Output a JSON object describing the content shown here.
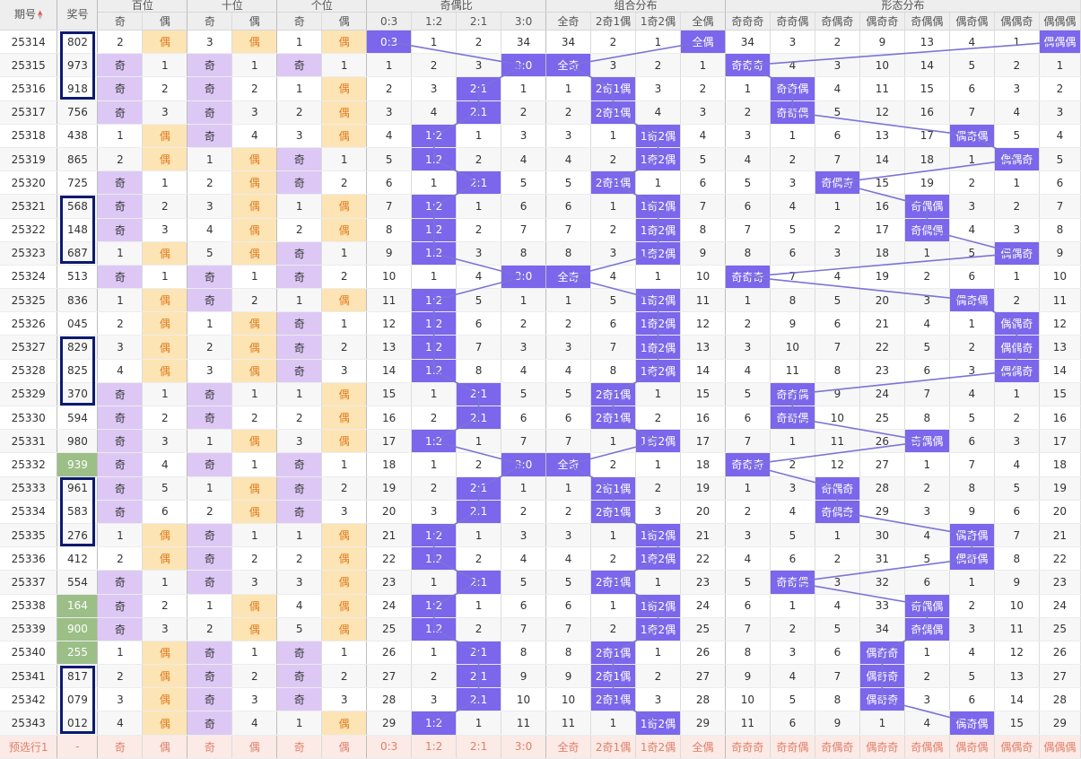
{
  "headers": {
    "qihao": "期号",
    "jianghao": "奖号",
    "bai": "百位",
    "shi": "十位",
    "ge": "个位",
    "jiou_bi": "奇偶比",
    "zuhe": "组合分布",
    "xingtai": "形态分布",
    "pos_sub": [
      "奇",
      "偶"
    ],
    "jiou_sub": [
      "0:3",
      "1:2",
      "2:1",
      "3:0"
    ],
    "zuhe_sub": [
      "全奇",
      "2奇1偶",
      "1奇2偶",
      "全偶"
    ],
    "xingtai_sub": [
      "奇奇奇",
      "奇奇偶",
      "奇偶奇",
      "偶奇奇",
      "奇偶偶",
      "偶奇偶",
      "偶偶奇",
      "偶偶偶"
    ]
  },
  "sort_icon": "sort-up-active-icon",
  "colors": {
    "highlight": "#7b66ec",
    "odd": "#ddc8f5",
    "even": "#fde4b5",
    "green": "#9cbf87",
    "box": "#0c1a6e"
  },
  "rows": [
    {
      "qihao": "25314",
      "num": "802",
      "c": [
        "2",
        "偶",
        "3",
        "偶",
        "1",
        "偶",
        "0:3",
        "1",
        "2",
        "34",
        "34",
        "2",
        "1",
        "全偶",
        "34",
        "3",
        "2",
        "9",
        "13",
        "4",
        "1",
        "偶偶偶"
      ]
    },
    {
      "qihao": "25315",
      "num": "973",
      "c": [
        "奇",
        "1",
        "奇",
        "1",
        "奇",
        "1",
        "1",
        "2",
        "3",
        "3:0",
        "全奇",
        "3",
        "2",
        "1",
        "奇奇奇",
        "4",
        "3",
        "10",
        "14",
        "5",
        "2",
        "1"
      ]
    },
    {
      "qihao": "25316",
      "num": "918",
      "c": [
        "奇",
        "2",
        "奇",
        "2",
        "1",
        "偶",
        "2",
        "3",
        "2:1",
        "1",
        "1",
        "2奇1偶",
        "3",
        "2",
        "1",
        "奇奇偶",
        "4",
        "11",
        "15",
        "6",
        "3",
        "2"
      ]
    },
    {
      "qihao": "25317",
      "num": "756",
      "c": [
        "奇",
        "3",
        "奇",
        "3",
        "2",
        "偶",
        "3",
        "4",
        "2:1",
        "2",
        "2",
        "2奇1偶",
        "4",
        "3",
        "2",
        "奇奇偶",
        "5",
        "12",
        "16",
        "7",
        "4",
        "3"
      ]
    },
    {
      "qihao": "25318",
      "num": "438",
      "c": [
        "1",
        "偶",
        "奇",
        "4",
        "3",
        "偶",
        "4",
        "1:2",
        "1",
        "3",
        "3",
        "1",
        "1奇2偶",
        "4",
        "3",
        "1",
        "6",
        "13",
        "17",
        "偶奇偶",
        "5",
        "4"
      ]
    },
    {
      "qihao": "25319",
      "num": "865",
      "c": [
        "2",
        "偶",
        "1",
        "偶",
        "奇",
        "1",
        "5",
        "1:2",
        "2",
        "4",
        "4",
        "2",
        "1奇2偶",
        "5",
        "4",
        "2",
        "7",
        "14",
        "18",
        "1",
        "偶偶奇",
        "5"
      ]
    },
    {
      "qihao": "25320",
      "num": "725",
      "c": [
        "奇",
        "1",
        "2",
        "偶",
        "奇",
        "2",
        "6",
        "1",
        "2:1",
        "5",
        "5",
        "2奇1偶",
        "1",
        "6",
        "5",
        "3",
        "奇偶奇",
        "15",
        "19",
        "2",
        "1",
        "6"
      ]
    },
    {
      "qihao": "25321",
      "num": "568",
      "c": [
        "奇",
        "2",
        "3",
        "偶",
        "1",
        "偶",
        "7",
        "1:2",
        "1",
        "6",
        "6",
        "1",
        "1奇2偶",
        "7",
        "6",
        "4",
        "1",
        "16",
        "奇偶偶",
        "3",
        "2",
        "7"
      ]
    },
    {
      "qihao": "25322",
      "num": "148",
      "c": [
        "奇",
        "3",
        "4",
        "偶",
        "2",
        "偶",
        "8",
        "1:2",
        "2",
        "7",
        "7",
        "2",
        "1奇2偶",
        "8",
        "7",
        "5",
        "2",
        "17",
        "奇偶偶",
        "4",
        "3",
        "8"
      ]
    },
    {
      "qihao": "25323",
      "num": "687",
      "c": [
        "1",
        "偶",
        "5",
        "偶",
        "奇",
        "1",
        "9",
        "1:2",
        "3",
        "8",
        "8",
        "3",
        "1奇2偶",
        "9",
        "8",
        "6",
        "3",
        "18",
        "1",
        "5",
        "偶偶奇",
        "9"
      ]
    },
    {
      "qihao": "25324",
      "num": "513",
      "c": [
        "奇",
        "1",
        "奇",
        "1",
        "奇",
        "2",
        "10",
        "1",
        "4",
        "3:0",
        "全奇",
        "4",
        "1",
        "10",
        "奇奇奇",
        "7",
        "4",
        "19",
        "2",
        "6",
        "1",
        "10"
      ]
    },
    {
      "qihao": "25325",
      "num": "836",
      "c": [
        "1",
        "偶",
        "奇",
        "2",
        "1",
        "偶",
        "11",
        "1:2",
        "5",
        "1",
        "1",
        "5",
        "1奇2偶",
        "11",
        "1",
        "8",
        "5",
        "20",
        "3",
        "偶奇偶",
        "2",
        "11"
      ]
    },
    {
      "qihao": "25326",
      "num": "045",
      "c": [
        "2",
        "偶",
        "1",
        "偶",
        "奇",
        "1",
        "12",
        "1:2",
        "6",
        "2",
        "2",
        "6",
        "1奇2偶",
        "12",
        "2",
        "9",
        "6",
        "21",
        "4",
        "1",
        "偶偶奇",
        "12"
      ]
    },
    {
      "qihao": "25327",
      "num": "829",
      "c": [
        "3",
        "偶",
        "2",
        "偶",
        "奇",
        "2",
        "13",
        "1:2",
        "7",
        "3",
        "3",
        "7",
        "1奇2偶",
        "13",
        "3",
        "10",
        "7",
        "22",
        "5",
        "2",
        "偶偶奇",
        "13"
      ]
    },
    {
      "qihao": "25328",
      "num": "825",
      "c": [
        "4",
        "偶",
        "3",
        "偶",
        "奇",
        "3",
        "14",
        "1:2",
        "8",
        "4",
        "4",
        "8",
        "1奇2偶",
        "14",
        "4",
        "11",
        "8",
        "23",
        "6",
        "3",
        "偶偶奇",
        "14"
      ]
    },
    {
      "qihao": "25329",
      "num": "370",
      "c": [
        "奇",
        "1",
        "奇",
        "1",
        "1",
        "偶",
        "15",
        "1",
        "2:1",
        "5",
        "5",
        "2奇1偶",
        "1",
        "15",
        "5",
        "奇奇偶",
        "9",
        "24",
        "7",
        "4",
        "1",
        "15"
      ]
    },
    {
      "qihao": "25330",
      "num": "594",
      "c": [
        "奇",
        "2",
        "奇",
        "2",
        "2",
        "偶",
        "16",
        "2",
        "2:1",
        "6",
        "6",
        "2奇1偶",
        "2",
        "16",
        "6",
        "奇奇偶",
        "10",
        "25",
        "8",
        "5",
        "2",
        "16"
      ]
    },
    {
      "qihao": "25331",
      "num": "980",
      "c": [
        "奇",
        "3",
        "1",
        "偶",
        "3",
        "偶",
        "17",
        "1:2",
        "1",
        "7",
        "7",
        "1",
        "1奇2偶",
        "17",
        "7",
        "1",
        "11",
        "26",
        "奇偶偶",
        "6",
        "3",
        "17"
      ]
    },
    {
      "qihao": "25332",
      "num": "939",
      "c": [
        "奇",
        "4",
        "奇",
        "1",
        "奇",
        "1",
        "18",
        "1",
        "2",
        "3:0",
        "全奇",
        "2",
        "1",
        "18",
        "奇奇奇",
        "2",
        "12",
        "27",
        "1",
        "7",
        "4",
        "18"
      ]
    },
    {
      "qihao": "25333",
      "num": "961",
      "c": [
        "奇",
        "5",
        "1",
        "偶",
        "奇",
        "2",
        "19",
        "2",
        "2:1",
        "1",
        "1",
        "2奇1偶",
        "2",
        "19",
        "1",
        "3",
        "奇偶奇",
        "28",
        "2",
        "8",
        "5",
        "19"
      ]
    },
    {
      "qihao": "25334",
      "num": "583",
      "c": [
        "奇",
        "6",
        "2",
        "偶",
        "奇",
        "3",
        "20",
        "3",
        "2:1",
        "2",
        "2",
        "2奇1偶",
        "3",
        "20",
        "2",
        "4",
        "奇偶奇",
        "29",
        "3",
        "9",
        "6",
        "20"
      ]
    },
    {
      "qihao": "25335",
      "num": "276",
      "c": [
        "1",
        "偶",
        "奇",
        "1",
        "1",
        "偶",
        "21",
        "1:2",
        "1",
        "3",
        "3",
        "1",
        "1奇2偶",
        "21",
        "3",
        "5",
        "1",
        "30",
        "4",
        "偶奇偶",
        "7",
        "21"
      ]
    },
    {
      "qihao": "25336",
      "num": "412",
      "c": [
        "2",
        "偶",
        "奇",
        "2",
        "2",
        "偶",
        "22",
        "1:2",
        "2",
        "4",
        "4",
        "2",
        "1奇2偶",
        "22",
        "4",
        "6",
        "2",
        "31",
        "5",
        "偶奇偶",
        "8",
        "22"
      ]
    },
    {
      "qihao": "25337",
      "num": "554",
      "c": [
        "奇",
        "1",
        "奇",
        "3",
        "3",
        "偶",
        "23",
        "1",
        "2:1",
        "5",
        "5",
        "2奇1偶",
        "1",
        "23",
        "5",
        "奇奇偶",
        "3",
        "32",
        "6",
        "1",
        "9",
        "23"
      ]
    },
    {
      "qihao": "25338",
      "num": "164",
      "c": [
        "奇",
        "2",
        "1",
        "偶",
        "4",
        "偶",
        "24",
        "1:2",
        "1",
        "6",
        "6",
        "1",
        "1奇2偶",
        "24",
        "6",
        "1",
        "4",
        "33",
        "奇偶偶",
        "2",
        "10",
        "24"
      ]
    },
    {
      "qihao": "25339",
      "num": "900",
      "c": [
        "奇",
        "3",
        "2",
        "偶",
        "5",
        "偶",
        "25",
        "1:2",
        "2",
        "7",
        "7",
        "2",
        "1奇2偶",
        "25",
        "7",
        "2",
        "5",
        "34",
        "奇偶偶",
        "3",
        "11",
        "25"
      ]
    },
    {
      "qihao": "25340",
      "num": "255",
      "c": [
        "1",
        "偶",
        "奇",
        "1",
        "奇",
        "1",
        "26",
        "1",
        "2:1",
        "8",
        "8",
        "2奇1偶",
        "1",
        "26",
        "8",
        "3",
        "6",
        "偶奇奇",
        "1",
        "4",
        "12",
        "26"
      ]
    },
    {
      "qihao": "25341",
      "num": "817",
      "c": [
        "2",
        "偶",
        "奇",
        "2",
        "奇",
        "2",
        "27",
        "2",
        "2:1",
        "9",
        "9",
        "2奇1偶",
        "2",
        "27",
        "9",
        "4",
        "7",
        "偶奇奇",
        "2",
        "5",
        "13",
        "27"
      ]
    },
    {
      "qihao": "25342",
      "num": "079",
      "c": [
        "3",
        "偶",
        "奇",
        "3",
        "奇",
        "3",
        "28",
        "3",
        "2:1",
        "10",
        "10",
        "2奇1偶",
        "3",
        "28",
        "10",
        "5",
        "8",
        "偶奇奇",
        "3",
        "6",
        "14",
        "28"
      ]
    },
    {
      "qihao": "25343",
      "num": "012",
      "c": [
        "4",
        "偶",
        "奇",
        "4",
        "1",
        "偶",
        "29",
        "1:2",
        "1",
        "11",
        "11",
        "1",
        "1奇2偶",
        "29",
        "11",
        "6",
        "9",
        "1",
        "4",
        "偶奇偶",
        "15",
        "29"
      ]
    }
  ],
  "preselect": {
    "label": "预选行1",
    "num": "-",
    "c": [
      "奇",
      "偶",
      "奇",
      "偶",
      "奇",
      "偶",
      "0:3",
      "1:2",
      "2:1",
      "3:0",
      "全奇",
      "2奇1偶",
      "1奇2偶",
      "全偶",
      "奇奇奇",
      "奇奇偶",
      "奇偶奇",
      "偶奇奇",
      "奇偶偶",
      "偶奇偶",
      "偶偶奇",
      "偶偶偶"
    ]
  }
}
